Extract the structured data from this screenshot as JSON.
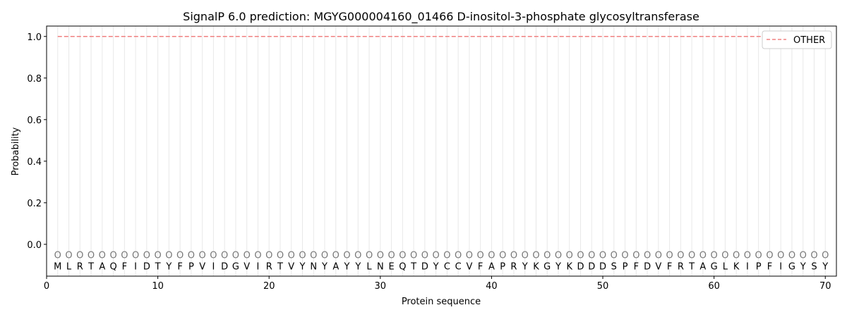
{
  "chart_data": {
    "type": "line",
    "title": "SignalP 6.0 prediction: MGYG000004160_01466 D-inositol-3-phosphate glycosyltransferase",
    "xlabel": "Protein sequence",
    "ylabel": "Probability",
    "xlim": [
      0,
      71
    ],
    "ylim": [
      -0.153,
      1.05
    ],
    "xticks": [
      0,
      10,
      20,
      30,
      40,
      50,
      60,
      70
    ],
    "yticks": [
      0.0,
      0.2,
      0.4,
      0.6,
      0.8,
      1.0
    ],
    "ytick_labels": [
      "0.0",
      "0.2",
      "0.4",
      "0.6",
      "0.8",
      "1.0"
    ],
    "grid": "vertical per residue",
    "legend_placement": "top-right",
    "sequence": [
      "M",
      "L",
      "R",
      "T",
      "A",
      "Q",
      "F",
      "I",
      "D",
      "T",
      "Y",
      "F",
      "P",
      "V",
      "I",
      "D",
      "G",
      "V",
      "I",
      "R",
      "T",
      "V",
      "Y",
      "N",
      "Y",
      "A",
      "Y",
      "Y",
      "L",
      "N",
      "E",
      "Q",
      "T",
      "D",
      "Y",
      "C",
      "C",
      "V",
      "F",
      "A",
      "P",
      "R",
      "Y",
      "K",
      "G",
      "Y",
      "K",
      "D",
      "D",
      "D",
      "S",
      "P",
      "F",
      "D",
      "V",
      "F",
      "R",
      "T",
      "A",
      "G",
      "L",
      "K",
      "I",
      "P",
      "F",
      "I",
      "G",
      "Y",
      "S",
      "Y"
    ],
    "predicted_label": "O",
    "series": [
      {
        "name": "OTHER",
        "color": "#f08080",
        "style": "dashed",
        "x_range": [
          1,
          70
        ],
        "value": 1.0
      }
    ]
  }
}
